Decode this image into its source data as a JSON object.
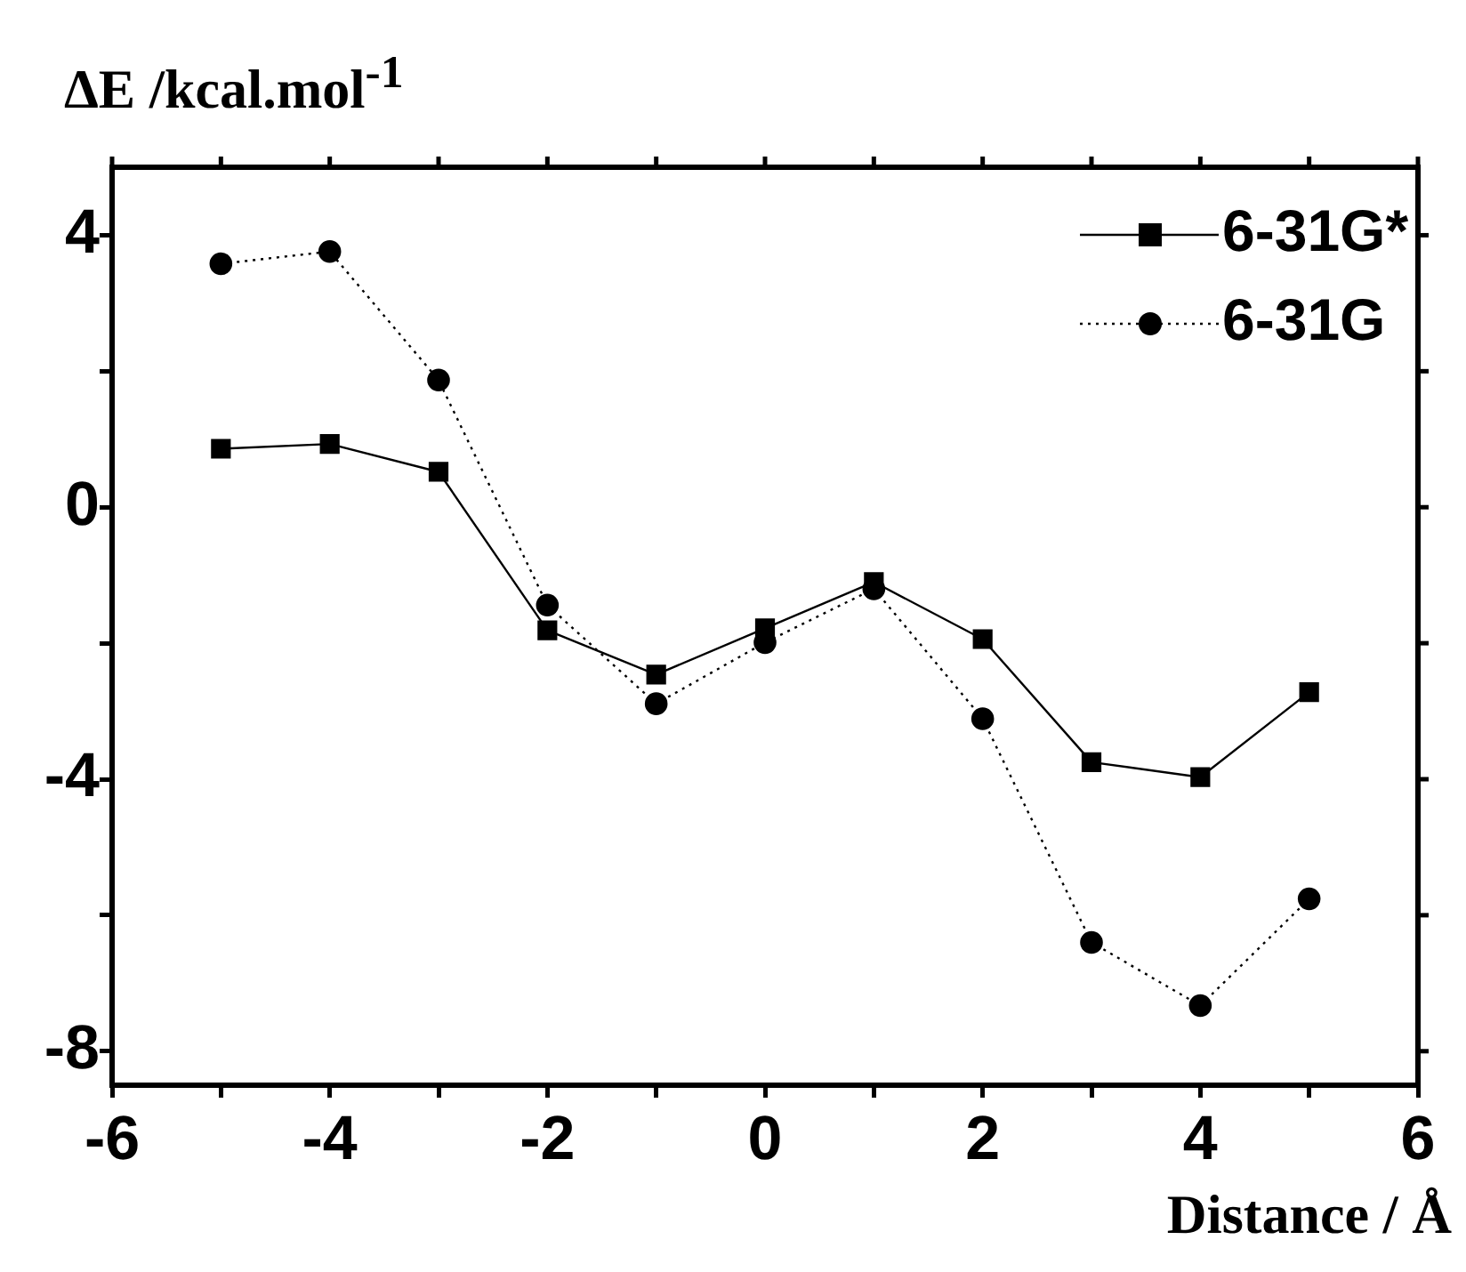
{
  "chart_data": {
    "type": "line",
    "xlabel": "Distance / Å",
    "ylabel": "ΔE /kcal.mol$^{-1}$",
    "x": [
      -5,
      -4,
      -3,
      -2,
      -1,
      0,
      1,
      2,
      3,
      4,
      5
    ],
    "xlim": [
      -6,
      6
    ],
    "xticks": [
      -6,
      {
        "value": -5,
        "label": null
      },
      -4,
      {
        "value": -3,
        "label": null
      },
      -2,
      {
        "value": -1,
        "label": null
      },
      0,
      {
        "value": 1,
        "label": null
      },
      2,
      {
        "value": 3,
        "label": null
      },
      4,
      {
        "value": 5,
        "label": null
      },
      6
    ],
    "ylim": [
      -8.5,
      5
    ],
    "yticks": [
      -8,
      {
        "value": -6,
        "label": null
      },
      -4,
      {
        "value": -2,
        "label": null
      },
      0,
      {
        "value": 2,
        "label": null
      },
      4
    ],
    "grid": false,
    "legend": "top right",
    "series": [
      {
        "name": "6-31G*",
        "color": "#000000",
        "marker": "square",
        "line_style": "solid",
        "values": [
          0.86,
          0.93,
          0.52,
          -1.81,
          -2.46,
          -1.78,
          -1.1,
          -1.94,
          -3.75,
          -3.97,
          -2.72
        ]
      },
      {
        "name": "6-31G",
        "color": "#000000",
        "marker": "circle",
        "line_style": "dotted",
        "values": [
          3.58,
          3.76,
          1.87,
          -1.44,
          -2.89,
          -1.99,
          -1.2,
          -3.11,
          -6.4,
          -7.33,
          -5.76
        ]
      }
    ]
  }
}
